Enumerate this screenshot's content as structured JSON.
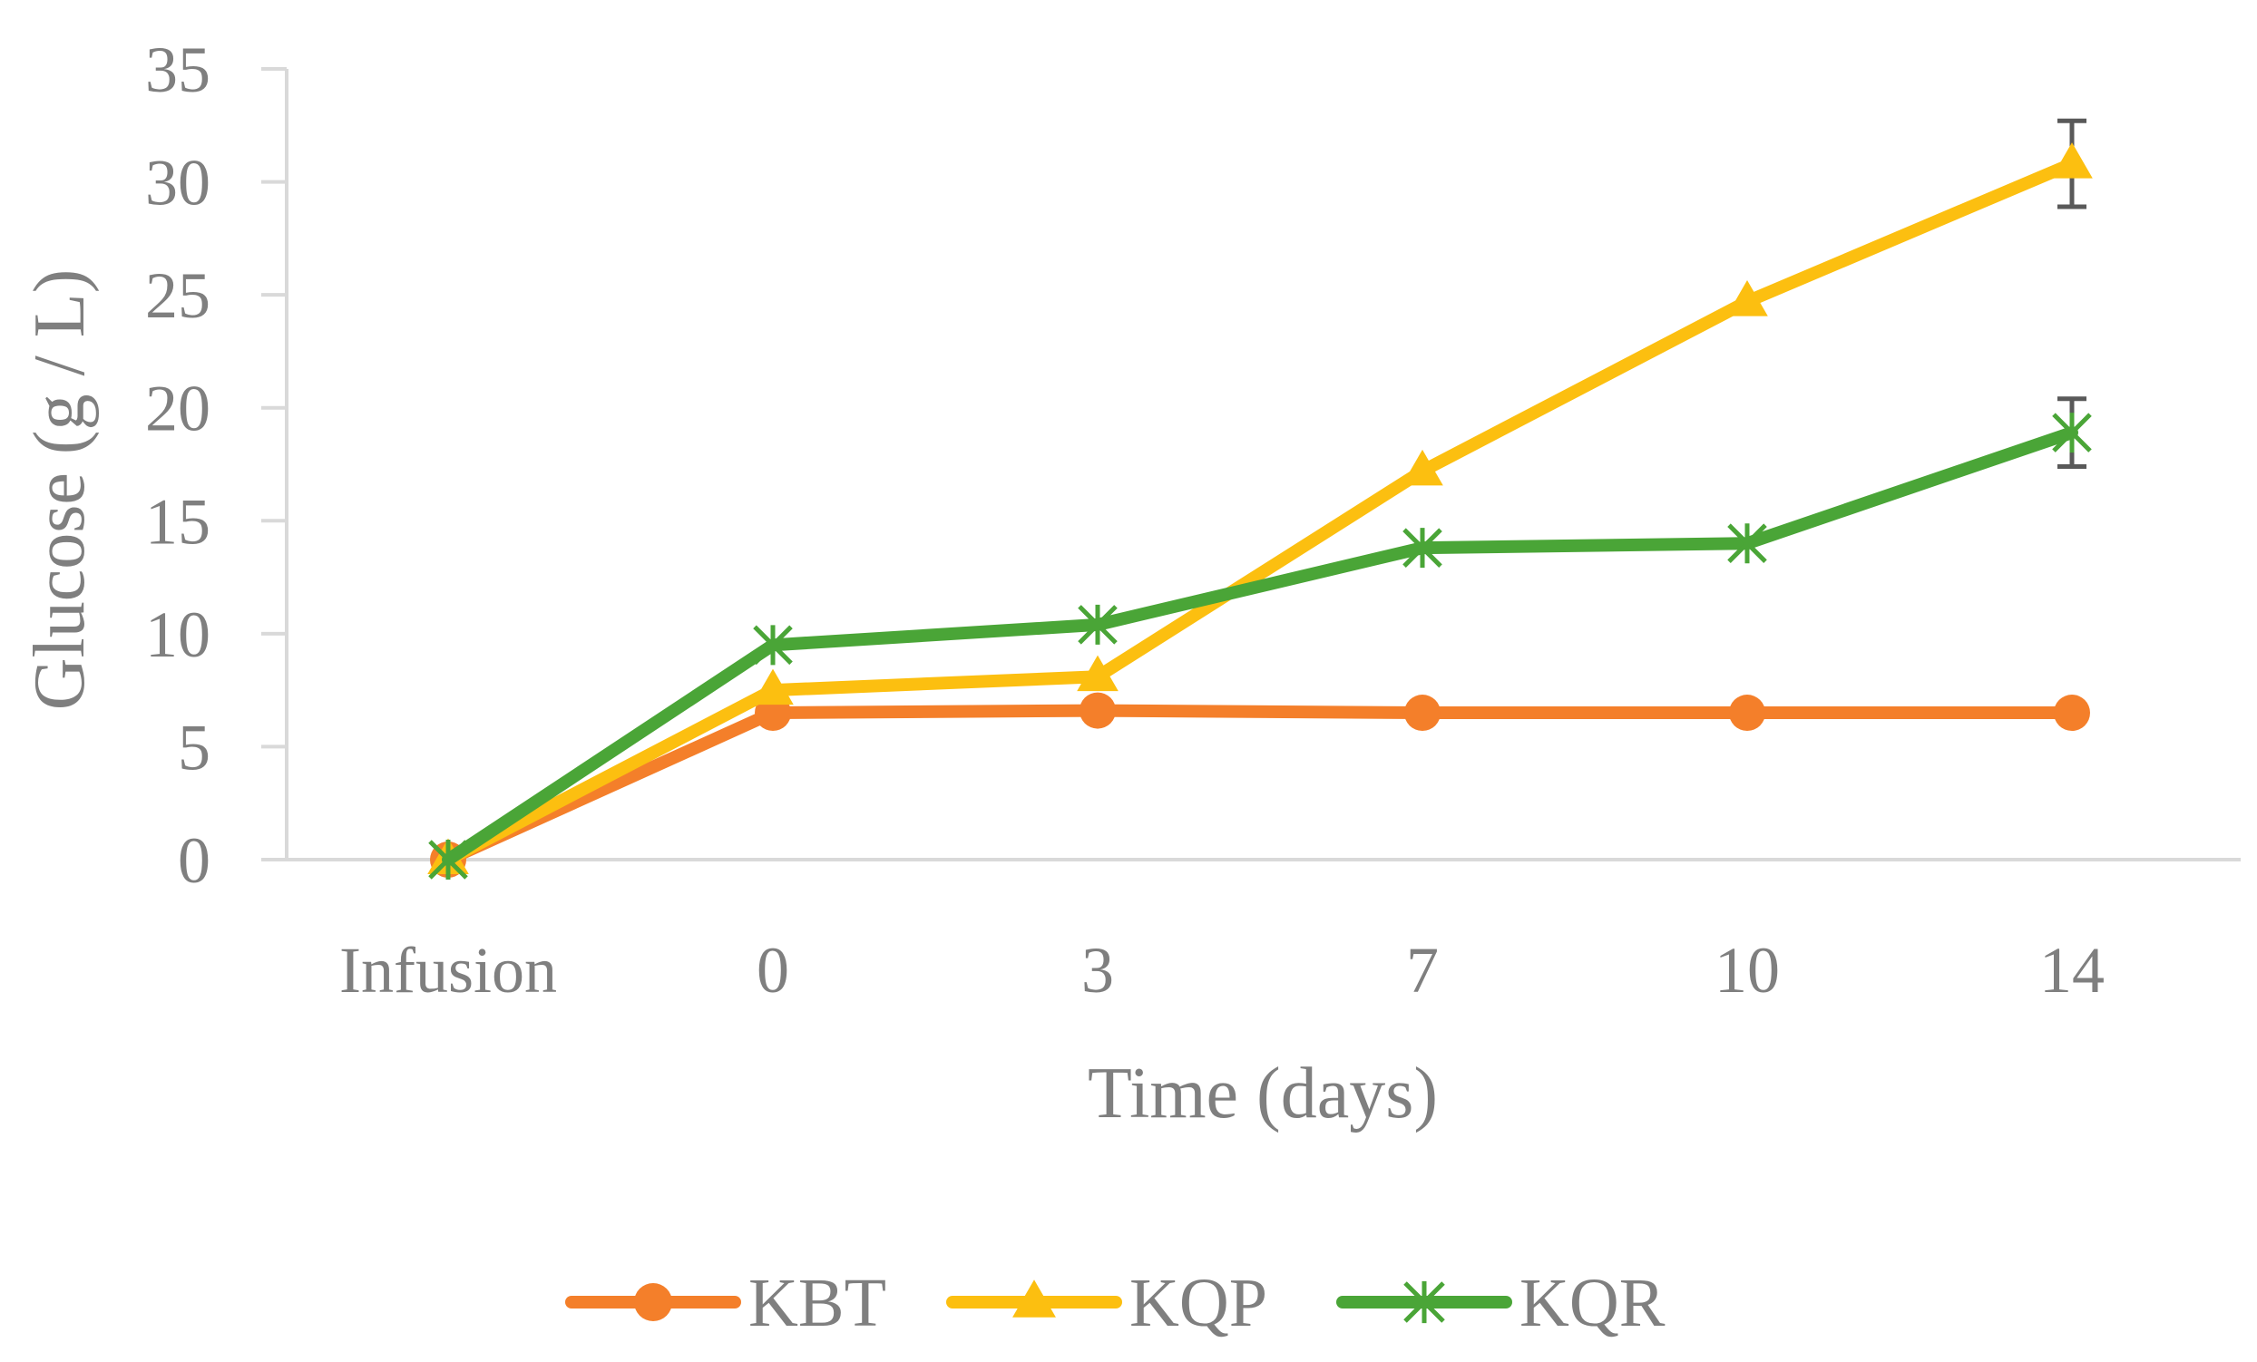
{
  "chart_data": {
    "type": "line",
    "title": "",
    "xlabel": "Time (days)",
    "ylabel": "Glucose (g / L)",
    "categories": [
      "Infusion",
      "0",
      "3",
      "7",
      "10",
      "14"
    ],
    "ylim": [
      0,
      35
    ],
    "yticks": [
      0,
      5,
      10,
      15,
      20,
      25,
      30,
      35
    ],
    "grid": false,
    "legend_position": "bottom",
    "series": [
      {
        "name": "KBT",
        "marker": "circle",
        "color": "#f47f2a",
        "values": [
          0,
          6.5,
          6.6,
          6.5,
          6.5,
          6.5
        ],
        "errors": [
          0,
          0.2,
          0.2,
          0.2,
          0.2,
          0.2
        ]
      },
      {
        "name": "KQP",
        "marker": "triangle",
        "color": "#fcbf10",
        "values": [
          0,
          7.5,
          8.1,
          17.2,
          24.7,
          30.8
        ],
        "errors": [
          0,
          0.2,
          0.3,
          0.4,
          0.4,
          1.9
        ]
      },
      {
        "name": "KQR",
        "marker": "star",
        "color": "#4aa537",
        "values": [
          0,
          9.5,
          10.4,
          13.8,
          14.0,
          18.9
        ],
        "errors": [
          0,
          0.2,
          0.3,
          0.3,
          0.3,
          1.5
        ]
      }
    ]
  }
}
